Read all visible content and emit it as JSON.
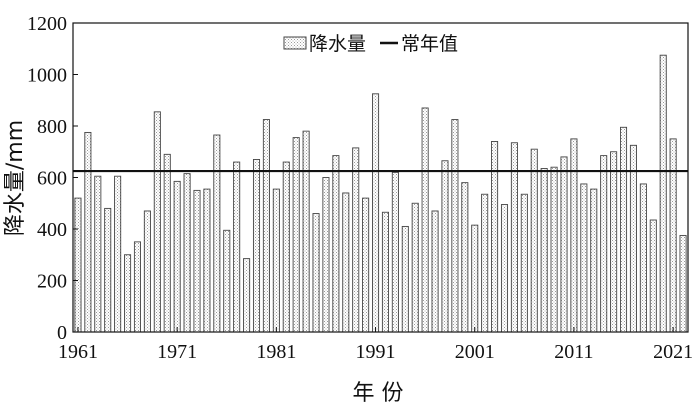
{
  "chart_data": {
    "type": "bar",
    "x": [
      1961,
      1962,
      1963,
      1964,
      1965,
      1966,
      1967,
      1968,
      1969,
      1970,
      1971,
      1972,
      1973,
      1974,
      1975,
      1976,
      1977,
      1978,
      1979,
      1980,
      1981,
      1982,
      1983,
      1984,
      1985,
      1986,
      1987,
      1988,
      1989,
      1990,
      1991,
      1992,
      1993,
      1994,
      1995,
      1996,
      1997,
      1998,
      1999,
      2000,
      2001,
      2002,
      2003,
      2004,
      2005,
      2006,
      2007,
      2008,
      2009,
      2010,
      2011,
      2012,
      2013,
      2014,
      2015,
      2016,
      2017,
      2018,
      2019,
      2020,
      2021,
      2022
    ],
    "series": [
      {
        "name": "降水量",
        "values": [
          520,
          775,
          605,
          480,
          605,
          300,
          350,
          470,
          855,
          690,
          585,
          615,
          550,
          555,
          765,
          395,
          660,
          285,
          670,
          825,
          555,
          660,
          755,
          780,
          460,
          600,
          685,
          540,
          715,
          520,
          925,
          465,
          620,
          410,
          500,
          870,
          470,
          665,
          825,
          580,
          415,
          535,
          740,
          495,
          735,
          535,
          710,
          635,
          640,
          680,
          750,
          575,
          555,
          685,
          700,
          795,
          725,
          575,
          435,
          1075,
          750,
          375
        ]
      }
    ],
    "reference_line": {
      "name": "常年值",
      "value": 625
    },
    "xlabel": "年 份",
    "ylabel": "降水量/mm",
    "xticks": [
      1961,
      1971,
      1981,
      1991,
      2001,
      2011,
      2021
    ],
    "yticks": [
      0,
      200,
      400,
      600,
      800,
      1000,
      1200
    ],
    "ylim": [
      0,
      1200
    ],
    "legend_position": "top-center",
    "grid": false
  },
  "colors": {
    "bar_fill": "#ffffff",
    "bar_stroke": "#444444",
    "line": "#111111",
    "axis": "#111111"
  }
}
